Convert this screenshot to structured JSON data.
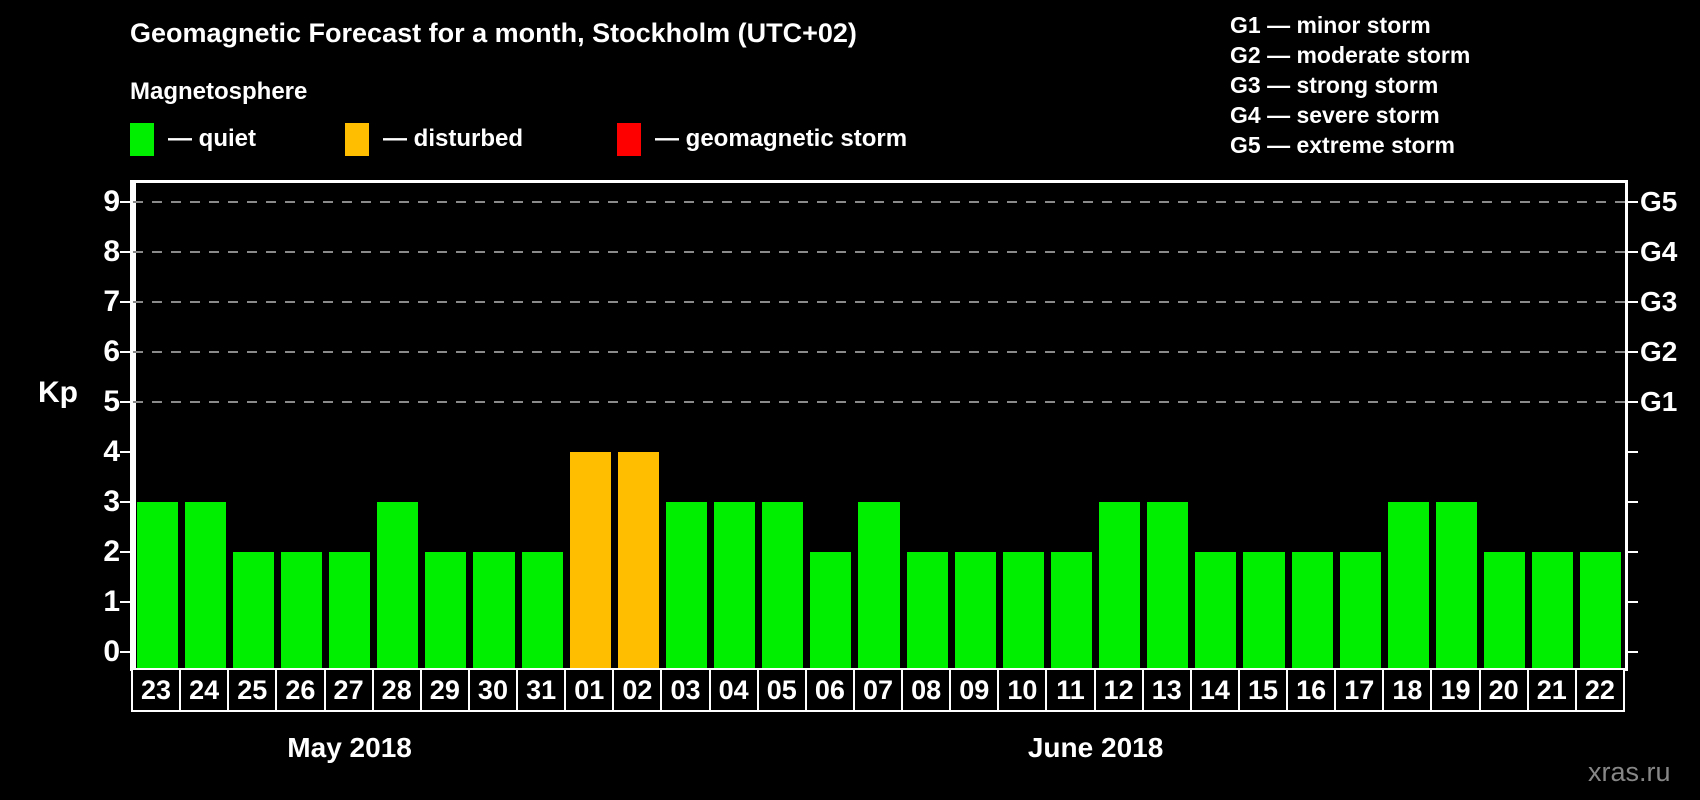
{
  "title": "Geomagnetic Forecast for a month, Stockholm (UTC+02)",
  "subtitle": "Magnetosphere",
  "legend": {
    "items": [
      {
        "name": "quiet",
        "label": "— quiet",
        "color": "#00EE00",
        "x": 130
      },
      {
        "name": "disturbed",
        "label": "— disturbed",
        "color": "#FFBE00",
        "x": 345
      },
      {
        "name": "storm",
        "label": "— geomagnetic storm",
        "color": "#FF0000",
        "x": 617
      }
    ]
  },
  "g_legend": {
    "items": [
      "G1 — minor storm",
      "G2 — moderate storm",
      "G3 — strong storm",
      "G4 — severe storm",
      "G5 — extreme storm"
    ]
  },
  "watermark": "xras.ru",
  "chart_data": {
    "type": "bar",
    "title": "Geomagnetic Forecast for a month, Stockholm (UTC+02)",
    "ylabel": "Kp",
    "ylim": [
      0,
      9
    ],
    "yticks": [
      0,
      1,
      2,
      3,
      4,
      5,
      6,
      7,
      8,
      9
    ],
    "gridlines_at": [
      5,
      6,
      7,
      8,
      9
    ],
    "grid": "dashed-gray-horizontal",
    "legend_position": "top",
    "right_axis_labels": [
      {
        "label": "G1",
        "kp": 5
      },
      {
        "label": "G2",
        "kp": 6
      },
      {
        "label": "G3",
        "kp": 7
      },
      {
        "label": "G4",
        "kp": 8
      },
      {
        "label": "G5",
        "kp": 9
      }
    ],
    "categories": [
      "23",
      "24",
      "25",
      "26",
      "27",
      "28",
      "29",
      "30",
      "31",
      "01",
      "02",
      "03",
      "04",
      "05",
      "06",
      "07",
      "08",
      "09",
      "10",
      "11",
      "12",
      "13",
      "14",
      "15",
      "16",
      "17",
      "18",
      "19",
      "20",
      "21",
      "22"
    ],
    "values": [
      3,
      3,
      2,
      2,
      2,
      3,
      2,
      2,
      2,
      4,
      4,
      3,
      3,
      3,
      2,
      3,
      2,
      2,
      2,
      2,
      3,
      3,
      2,
      2,
      2,
      2,
      3,
      3,
      2,
      2,
      2
    ],
    "statuses": [
      "quiet",
      "quiet",
      "quiet",
      "quiet",
      "quiet",
      "quiet",
      "quiet",
      "quiet",
      "quiet",
      "disturbed",
      "disturbed",
      "quiet",
      "quiet",
      "quiet",
      "quiet",
      "quiet",
      "quiet",
      "quiet",
      "quiet",
      "quiet",
      "quiet",
      "quiet",
      "quiet",
      "quiet",
      "quiet",
      "quiet",
      "quiet",
      "quiet",
      "quiet",
      "quiet",
      "quiet"
    ],
    "colors_by_status": {
      "quiet": "#00EE00",
      "disturbed": "#FFBE00",
      "storm": "#FF0000"
    },
    "month_sections": [
      {
        "label": "May 2018",
        "start_index": 0,
        "count": 9
      },
      {
        "label": "June 2018",
        "start_index": 9,
        "count": 22
      }
    ]
  }
}
